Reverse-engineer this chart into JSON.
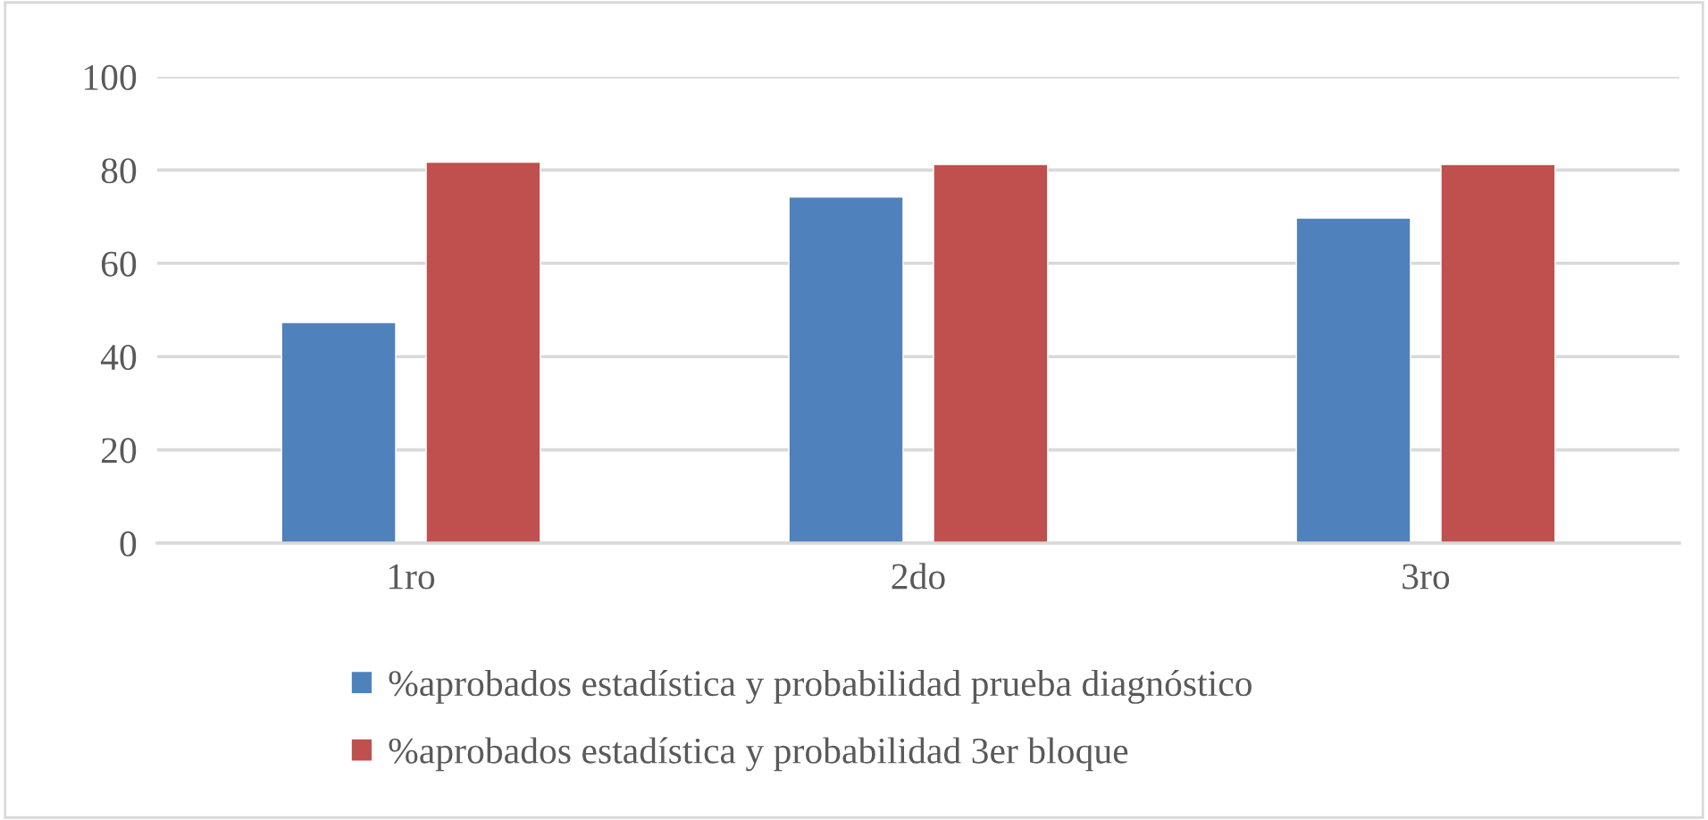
{
  "chart_data": {
    "type": "bar",
    "categories": [
      "1ro",
      "2do",
      "3ro"
    ],
    "series": [
      {
        "name": "%aprobados estadística y probabilidad prueba diagnóstico",
        "color": "#4f81bd",
        "values": [
          47.3,
          74.2,
          69.7
        ]
      },
      {
        "name": "%aprobados estadística y probabilidad 3er bloque",
        "color": "#c0504d",
        "values": [
          81.7,
          81.2,
          81.2
        ]
      }
    ],
    "ylim": [
      0,
      100
    ],
    "yticks": [
      0,
      20,
      40,
      60,
      80,
      100
    ],
    "grid": "y",
    "legend": "bottom"
  }
}
